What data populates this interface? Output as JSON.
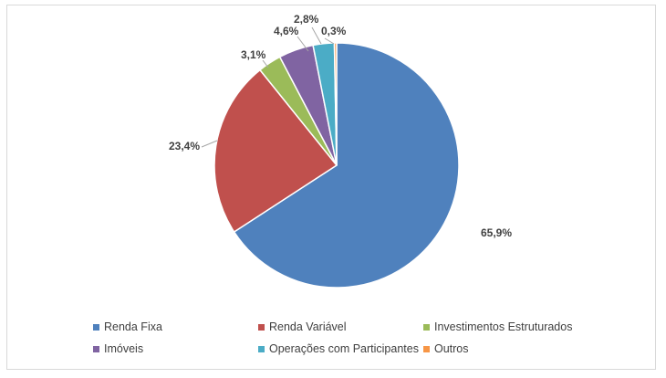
{
  "chart_data": {
    "type": "pie",
    "start_angle_deg": 0,
    "direction": "clockwise",
    "legend_position": "bottom",
    "slices": [
      {
        "name": "Renda Fixa",
        "value": 65.9,
        "label": "65,9%",
        "color": "#4f81bd"
      },
      {
        "name": "Renda Variável",
        "value": 23.4,
        "label": "23,4%",
        "color": "#c0504d"
      },
      {
        "name": "Investimentos Estruturados",
        "value": 3.1,
        "label": "3,1%",
        "color": "#9bbb59"
      },
      {
        "name": "Imóveis",
        "value": 4.6,
        "label": "4,6%",
        "color": "#8064a2"
      },
      {
        "name": "Operações com Participantes",
        "value": 2.8,
        "label": "2,8%",
        "color": "#4bacc6"
      },
      {
        "name": "Outros",
        "value": 0.3,
        "label": "0,3%",
        "color": "#f79646"
      }
    ]
  }
}
